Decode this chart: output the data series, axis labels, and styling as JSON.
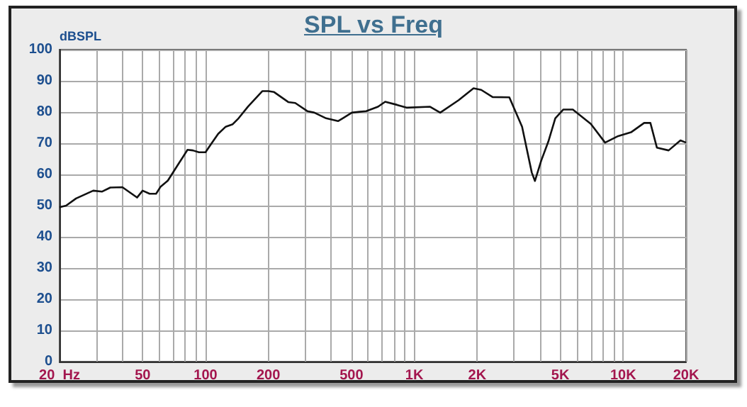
{
  "chart_data": {
    "type": "line",
    "title": "SPL vs Freq",
    "ylabel": "dBSPL",
    "log": "x",
    "grid": true,
    "marker": "none",
    "line_style": "solid",
    "xlim": [
      20,
      20000
    ],
    "ylim": [
      0,
      100
    ],
    "xticks": [
      {
        "value": 20,
        "label": "20  Hz"
      },
      {
        "value": 30,
        "label": null
      },
      {
        "value": 40,
        "label": null
      },
      50,
      {
        "value": 60,
        "label": null
      },
      {
        "value": 70,
        "label": null
      },
      {
        "value": 80,
        "label": null
      },
      {
        "value": 90,
        "label": null
      },
      100,
      200,
      {
        "value": 300,
        "label": null
      },
      {
        "value": 400,
        "label": null
      },
      500,
      {
        "value": 600,
        "label": null
      },
      {
        "value": 700,
        "label": null
      },
      {
        "value": 800,
        "label": null
      },
      {
        "value": 900,
        "label": null
      },
      {
        "value": 1000,
        "label": "1K"
      },
      {
        "value": 2000,
        "label": "2K"
      },
      {
        "value": 3000,
        "label": null
      },
      {
        "value": 4000,
        "label": null
      },
      {
        "value": 5000,
        "label": "5K"
      },
      {
        "value": 6000,
        "label": null
      },
      {
        "value": 7000,
        "label": null
      },
      {
        "value": 8000,
        "label": null
      },
      {
        "value": 9000,
        "label": null
      },
      {
        "value": 10000,
        "label": "10K"
      },
      {
        "value": 20000,
        "label": "20K"
      }
    ],
    "yticks": [
      0,
      10,
      20,
      30,
      40,
      50,
      60,
      70,
      80,
      90,
      100
    ],
    "series": [
      {
        "color": "#111111",
        "x": [
          20,
          21.5,
          24,
          29,
          32,
          35,
          40,
          47,
          50,
          54,
          58,
          61,
          66,
          73,
          82,
          87,
          93,
          100,
          105,
          115,
          125,
          135,
          144,
          160,
          187,
          200,
          213,
          249,
          269,
          307,
          332,
          378,
          431,
          454,
          502,
          588,
          670,
          725,
          826,
          917,
          1190,
          1330,
          1630,
          1920,
          2090,
          2370,
          2850,
          3280,
          3650,
          3780,
          4050,
          4380,
          4730,
          5170,
          5740,
          7000,
          8190,
          9460,
          10900,
          12600,
          13500,
          14500,
          16500,
          18800,
          20000
        ],
        "values": [
          49.5,
          50,
          52.3,
          54.8,
          54.5,
          55.8,
          55.9,
          52.6,
          54.8,
          53.8,
          53.8,
          56.1,
          58,
          62.6,
          67.9,
          67.7,
          67.1,
          67.1,
          69.2,
          73,
          75.3,
          76.1,
          78,
          81.8,
          86.7,
          86.7,
          86.4,
          83.2,
          82.9,
          80.3,
          79.8,
          78,
          77.1,
          78,
          79.8,
          80.3,
          81.7,
          83.3,
          82.3,
          81.4,
          81.7,
          79.8,
          83.8,
          87.6,
          87.1,
          84.8,
          84.7,
          75.3,
          60.6,
          57.9,
          64.4,
          70.5,
          78,
          80.8,
          80.8,
          76.2,
          70.2,
          72.3,
          73.5,
          76.5,
          76.5,
          68.6,
          67.7,
          70.9,
          70.2
        ]
      }
    ]
  }
}
